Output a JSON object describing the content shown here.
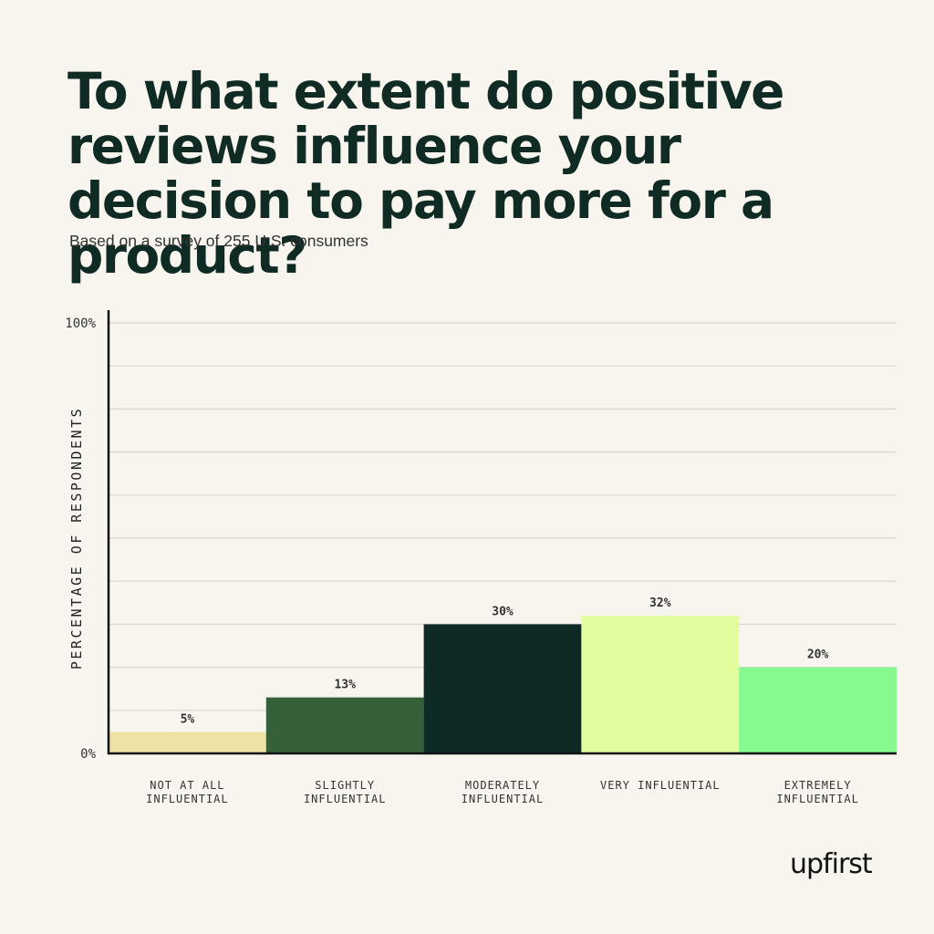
{
  "title": "To what extent do positive reviews influence your decision to pay more for a product?",
  "subtitle": "Based on a survey of 255 U.S. consumers",
  "logo": "upfirst",
  "chart_data": {
    "type": "bar",
    "categories": [
      [
        "NOT AT ALL",
        "INFLUENTIAL"
      ],
      [
        "SLIGHTLY",
        "INFLUENTIAL"
      ],
      [
        "MODERATELY",
        "INFLUENTIAL"
      ],
      [
        "VERY INFLUENTIAL"
      ],
      [
        "EXTREMELY",
        "INFLUENTIAL"
      ]
    ],
    "values": [
      5,
      13,
      30,
      32,
      20
    ],
    "value_labels": [
      "5%",
      "13%",
      "30%",
      "32%",
      "20%"
    ],
    "colors": [
      "#eee2a6",
      "#36603a",
      "#0d2a25",
      "#e2fd9d",
      "#88f98f"
    ],
    "ylabel": "PERCENTAGE OF RESPONDENTS",
    "ylim": [
      0,
      100
    ],
    "ytick_labels": [
      "0%",
      "100%"
    ],
    "grid": true,
    "gridline_color": "#d9d6cf"
  }
}
